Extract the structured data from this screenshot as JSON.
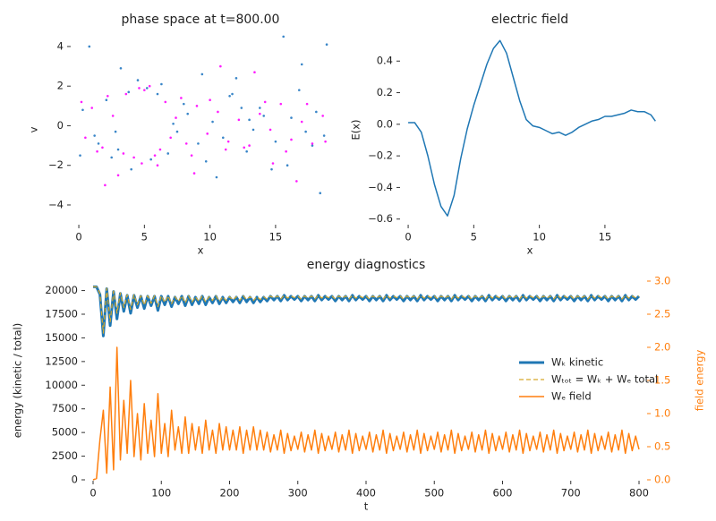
{
  "chart_data": [
    {
      "type": "scatter",
      "title": "phase space at t=800.00",
      "xlabel": "x",
      "ylabel": "v",
      "xlim": [
        -0.55,
        19.1
      ],
      "ylim": [
        -4.95,
        4.54
      ],
      "xticks": [
        0,
        5,
        10,
        15
      ],
      "yticks": [
        {
          "value": -4,
          "label": "−4"
        },
        {
          "value": -2,
          "label": "−2"
        },
        0,
        2,
        4
      ],
      "series": [
        {
          "color": "#3a86c8",
          "x": [
            0.3,
            1.2,
            2.1,
            3.0,
            3.8,
            5.2,
            6.0,
            7.5,
            8.3,
            9.1,
            10.2,
            11.0,
            12.4,
            13.3,
            14.1,
            15.0,
            16.2,
            17.3,
            18.1,
            18.7,
            0.8,
            2.5,
            3.2,
            6.8,
            8.0,
            9.7,
            11.5,
            13.8,
            15.6,
            17.8,
            1.5,
            4.5,
            5.5,
            10.5,
            12.0,
            14.7,
            16.8,
            18.4,
            0.1,
            7.2,
            9.4,
            12.8,
            15.9,
            18.9,
            2.8,
            6.3,
            11.7,
            4.0,
            13.0,
            17.0
          ],
          "values": [
            0.8,
            -0.5,
            1.3,
            -1.2,
            1.7,
            1.9,
            1.6,
            -0.3,
            0.6,
            -0.9,
            0.2,
            -0.6,
            0.9,
            -0.2,
            0.5,
            -0.8,
            0.4,
            -0.3,
            0.7,
            -0.5,
            4.0,
            -1.6,
            2.9,
            -1.4,
            1.1,
            -1.8,
            1.5,
            0.9,
            4.5,
            -1.0,
            -0.9,
            2.3,
            -1.7,
            -2.6,
            2.4,
            -2.2,
            1.8,
            -3.4,
            -1.5,
            0.1,
            2.6,
            -1.3,
            -2.0,
            4.1,
            -0.3,
            2.1,
            1.6,
            -2.2,
            0.3,
            3.1
          ]
        },
        {
          "color": "#ff1dff",
          "x": [
            0.5,
            1.0,
            1.8,
            2.6,
            3.4,
            4.2,
            5.0,
            5.8,
            6.6,
            7.4,
            8.2,
            9.0,
            9.8,
            10.6,
            11.4,
            12.2,
            13.0,
            13.8,
            14.6,
            15.4,
            16.2,
            17.0,
            17.8,
            18.6,
            0.2,
            1.4,
            2.2,
            3.6,
            4.8,
            6.2,
            7.0,
            7.8,
            8.6,
            10.0,
            11.2,
            12.6,
            14.2,
            15.8,
            17.4,
            18.8,
            2.0,
            8.8,
            13.4,
            16.6,
            3.0,
            6.0,
            10.8,
            14.8,
            4.6,
            5.4
          ],
          "values": [
            -0.6,
            0.9,
            -1.1,
            0.5,
            -1.4,
            -1.6,
            1.8,
            -1.5,
            1.2,
            0.4,
            -0.9,
            1.0,
            -0.4,
            0.7,
            -0.8,
            0.3,
            -1.0,
            0.6,
            -0.2,
            1.1,
            -0.7,
            0.2,
            -0.9,
            0.5,
            1.2,
            -1.3,
            1.5,
            1.6,
            -1.9,
            -1.2,
            -0.6,
            1.4,
            -1.5,
            1.3,
            -1.2,
            -1.1,
            1.2,
            -1.3,
            1.1,
            -0.8,
            -3.0,
            -2.4,
            2.7,
            -2.8,
            -2.5,
            -2.0,
            3.0,
            -1.9,
            1.9,
            2.0
          ]
        }
      ]
    },
    {
      "type": "line",
      "title": "electric field",
      "xlabel": "x",
      "ylabel": "E(x)",
      "xlim": [
        -0.55,
        19.1
      ],
      "ylim": [
        -0.63,
        0.56
      ],
      "xticks": [
        0,
        5,
        10,
        15
      ],
      "yticks": [
        {
          "value": -0.6,
          "label": "−0.6"
        },
        {
          "value": -0.4,
          "label": "−0.4"
        },
        {
          "value": -0.2,
          "label": "−0.2"
        },
        {
          "value": 0,
          "label": "0.0"
        },
        0.2,
        0.4
      ],
      "x": [
        0,
        0.5,
        1,
        1.5,
        2,
        2.5,
        3,
        3.5,
        4,
        4.5,
        5,
        5.5,
        6,
        6.5,
        7,
        7.5,
        8,
        8.5,
        9,
        9.5,
        10,
        10.5,
        11,
        11.5,
        12,
        12.5,
        13,
        13.5,
        14,
        14.5,
        15,
        15.5,
        16,
        16.5,
        17,
        17.5,
        18,
        18.5,
        18.85
      ],
      "series": [
        {
          "color": "#1f77b4",
          "linewidth": 1.5,
          "values": [
            0.01,
            0.01,
            -0.05,
            -0.2,
            -0.38,
            -0.52,
            -0.58,
            -0.45,
            -0.22,
            -0.03,
            0.12,
            0.25,
            0.38,
            0.48,
            0.53,
            0.45,
            0.3,
            0.15,
            0.03,
            -0.01,
            -0.02,
            -0.04,
            -0.06,
            -0.05,
            -0.07,
            -0.05,
            -0.02,
            0.0,
            0.02,
            0.03,
            0.05,
            0.05,
            0.06,
            0.07,
            0.09,
            0.08,
            0.08,
            0.06,
            0.02
          ]
        }
      ]
    },
    {
      "type": "line",
      "title": "energy diagnostics",
      "xlabel": "t",
      "ylabel": "energy (kinetic / total)",
      "y2label": "field energy",
      "y2color": "#ff7f0e",
      "legend": "right",
      "xlim": [
        -10.5,
        810.5
      ],
      "ylim": [
        0,
        21000
      ],
      "y2lim": [
        0,
        3.0
      ],
      "xticks": [
        0,
        100,
        200,
        300,
        400,
        500,
        600,
        700,
        800
      ],
      "yticks": [
        0,
        2500,
        5000,
        7500,
        10000,
        12500,
        15000,
        17500,
        20000
      ],
      "y2ticks": [
        {
          "value": 0,
          "label": "0.0"
        },
        0.5,
        {
          "value": 1,
          "label": "1.0"
        },
        1.5,
        {
          "value": 2,
          "label": "2.0"
        },
        2.5,
        {
          "value": 3,
          "label": "3.0"
        }
      ],
      "x": [
        0,
        5,
        10,
        15,
        20,
        25,
        30,
        35,
        40,
        45,
        50,
        55,
        60,
        65,
        70,
        75,
        80,
        85,
        90,
        95,
        100,
        105,
        110,
        115,
        120,
        125,
        130,
        135,
        140,
        145,
        150,
        155,
        160,
        165,
        170,
        175,
        180,
        185,
        190,
        195,
        200,
        205,
        210,
        215,
        220,
        225,
        230,
        235,
        240,
        245,
        250,
        255,
        260,
        265,
        270,
        275,
        280,
        285,
        290,
        295,
        300,
        305,
        310,
        315,
        320,
        325,
        330,
        335,
        340,
        345,
        350,
        355,
        360,
        365,
        370,
        375,
        380,
        385,
        390,
        395,
        400,
        405,
        410,
        415,
        420,
        425,
        430,
        435,
        440,
        445,
        450,
        455,
        460,
        465,
        470,
        475,
        480,
        485,
        490,
        495,
        500,
        505,
        510,
        515,
        520,
        525,
        530,
        535,
        540,
        545,
        550,
        555,
        560,
        565,
        570,
        575,
        580,
        585,
        590,
        595,
        600,
        605,
        610,
        615,
        620,
        625,
        630,
        635,
        640,
        645,
        650,
        655,
        660,
        665,
        670,
        675,
        680,
        685,
        690,
        695,
        700,
        705,
        710,
        715,
        720,
        725,
        730,
        735,
        740,
        745,
        750,
        755,
        760,
        765,
        770,
        775,
        780,
        785,
        790,
        795,
        800
      ],
      "series": [
        {
          "name": "Wₖ kinetic",
          "color": "#1f77b4",
          "linewidth": 3,
          "values": [
            20400,
            20400,
            19600,
            15200,
            20200,
            16300,
            19900,
            17000,
            19700,
            17800,
            19500,
            17600,
            19500,
            18200,
            19400,
            18100,
            19400,
            18400,
            19400,
            17900,
            19400,
            18500,
            19400,
            18300,
            19300,
            18600,
            19400,
            18400,
            19400,
            18500,
            19300,
            18600,
            19400,
            18500,
            19300,
            18700,
            19400,
            18600,
            19300,
            18700,
            19300,
            18800,
            19300,
            18700,
            19400,
            18800,
            19300,
            18700,
            19300,
            18800,
            19300,
            18900,
            19400,
            19000,
            19400,
            18900,
            19500,
            19000,
            19400,
            19050,
            19400,
            18900,
            19400,
            19000,
            19400,
            18900,
            19500,
            19000,
            19400,
            19050,
            19400,
            18900,
            19400,
            19000,
            19400,
            18900,
            19500,
            19000,
            19400,
            19050,
            19400,
            18900,
            19400,
            19000,
            19400,
            18900,
            19500,
            19000,
            19400,
            19050,
            19400,
            18900,
            19400,
            19000,
            19400,
            18900,
            19500,
            19000,
            19400,
            19050,
            19400,
            18900,
            19400,
            19000,
            19400,
            18900,
            19500,
            19000,
            19400,
            19050,
            19400,
            18900,
            19400,
            19000,
            19400,
            18900,
            19500,
            19000,
            19400,
            19050,
            19400,
            18900,
            19400,
            19000,
            19400,
            18900,
            19500,
            19000,
            19400,
            19050,
            19400,
            18900,
            19400,
            19000,
            19400,
            18900,
            19500,
            19000,
            19400,
            19050,
            19400,
            18900,
            19400,
            19000,
            19400,
            18900,
            19500,
            19000,
            19400,
            19050,
            19400,
            18900,
            19400,
            19000,
            19400,
            18900,
            19500,
            19000,
            19400,
            19050,
            19400
          ]
        },
        {
          "name": "Wₜₒₜ = Wₖ + Wₑ total",
          "color": "#d6a92a",
          "linewidth": 1.2,
          "style": "dashed",
          "values": [
            20400,
            20400,
            19700,
            15500,
            20250,
            16700,
            19950,
            17600,
            19750,
            18200,
            19550,
            18000,
            19550,
            18500,
            19450,
            18450,
            19450,
            18650,
            19450,
            18300,
            19450,
            18750,
            19450,
            18600,
            19350,
            18850,
            19450,
            18700,
            19450,
            18800,
            19350,
            18850,
            19450,
            18800,
            19350,
            18950,
            19450,
            18850,
            19350,
            18950,
            19350,
            19000,
            19350,
            18950,
            19450,
            19050,
            19350,
            18950,
            19350,
            19050,
            19350,
            19100,
            19420,
            19200,
            19420,
            19100,
            19520,
            19200,
            19420,
            19250,
            19420,
            19100,
            19420,
            19200,
            19420,
            19100,
            19520,
            19200,
            19420,
            19250,
            19420,
            19100,
            19420,
            19200,
            19420,
            19100,
            19520,
            19200,
            19420,
            19250,
            19420,
            19100,
            19420,
            19200,
            19420,
            19100,
            19520,
            19200,
            19420,
            19250,
            19420,
            19100,
            19420,
            19200,
            19420,
            19100,
            19520,
            19200,
            19420,
            19250,
            19420,
            19100,
            19420,
            19200,
            19420,
            19100,
            19520,
            19200,
            19420,
            19250,
            19420,
            19100,
            19420,
            19200,
            19420,
            19100,
            19520,
            19200,
            19420,
            19250,
            19420,
            19100,
            19420,
            19200,
            19420,
            19100,
            19520,
            19200,
            19420,
            19250,
            19420,
            19100,
            19420,
            19200,
            19420,
            19100,
            19520,
            19200,
            19420,
            19250,
            19420,
            19100,
            19420,
            19200,
            19420,
            19100,
            19520,
            19200,
            19420,
            19250,
            19420,
            19100,
            19420,
            19200,
            19420,
            19100,
            19520,
            19200,
            19420,
            19250,
            19420
          ]
        },
        {
          "name": "Wₑ field",
          "color": "#ff7f0e",
          "linewidth": 1.5,
          "axis": "y2",
          "values": [
            0.0,
            0.02,
            0.6,
            1.05,
            0.1,
            1.4,
            0.15,
            2.0,
            0.3,
            1.2,
            0.4,
            1.5,
            0.35,
            1.0,
            0.3,
            1.15,
            0.4,
            0.9,
            0.35,
            1.3,
            0.4,
            0.85,
            0.35,
            1.05,
            0.45,
            0.8,
            0.4,
            0.95,
            0.4,
            0.85,
            0.45,
            0.8,
            0.4,
            0.9,
            0.45,
            0.75,
            0.4,
            0.85,
            0.45,
            0.8,
            0.45,
            0.75,
            0.45,
            0.8,
            0.4,
            0.75,
            0.45,
            0.8,
            0.45,
            0.75,
            0.45,
            0.72,
            0.42,
            0.68,
            0.45,
            0.75,
            0.4,
            0.7,
            0.44,
            0.66,
            0.46,
            0.72,
            0.42,
            0.68,
            0.45,
            0.75,
            0.4,
            0.7,
            0.44,
            0.66,
            0.46,
            0.72,
            0.42,
            0.68,
            0.45,
            0.75,
            0.4,
            0.7,
            0.44,
            0.66,
            0.46,
            0.72,
            0.42,
            0.68,
            0.45,
            0.75,
            0.4,
            0.7,
            0.44,
            0.66,
            0.46,
            0.72,
            0.42,
            0.68,
            0.45,
            0.75,
            0.4,
            0.7,
            0.44,
            0.66,
            0.46,
            0.72,
            0.42,
            0.68,
            0.45,
            0.75,
            0.4,
            0.7,
            0.44,
            0.66,
            0.46,
            0.72,
            0.42,
            0.68,
            0.45,
            0.75,
            0.4,
            0.7,
            0.44,
            0.66,
            0.46,
            0.72,
            0.42,
            0.68,
            0.45,
            0.75,
            0.4,
            0.7,
            0.44,
            0.66,
            0.46,
            0.72,
            0.42,
            0.68,
            0.45,
            0.75,
            0.4,
            0.7,
            0.44,
            0.66,
            0.46,
            0.72,
            0.42,
            0.68,
            0.45,
            0.75,
            0.4,
            0.7,
            0.44,
            0.66,
            0.46,
            0.72,
            0.42,
            0.68,
            0.45,
            0.75,
            0.4,
            0.7,
            0.44,
            0.66,
            0.46
          ]
        }
      ]
    }
  ]
}
